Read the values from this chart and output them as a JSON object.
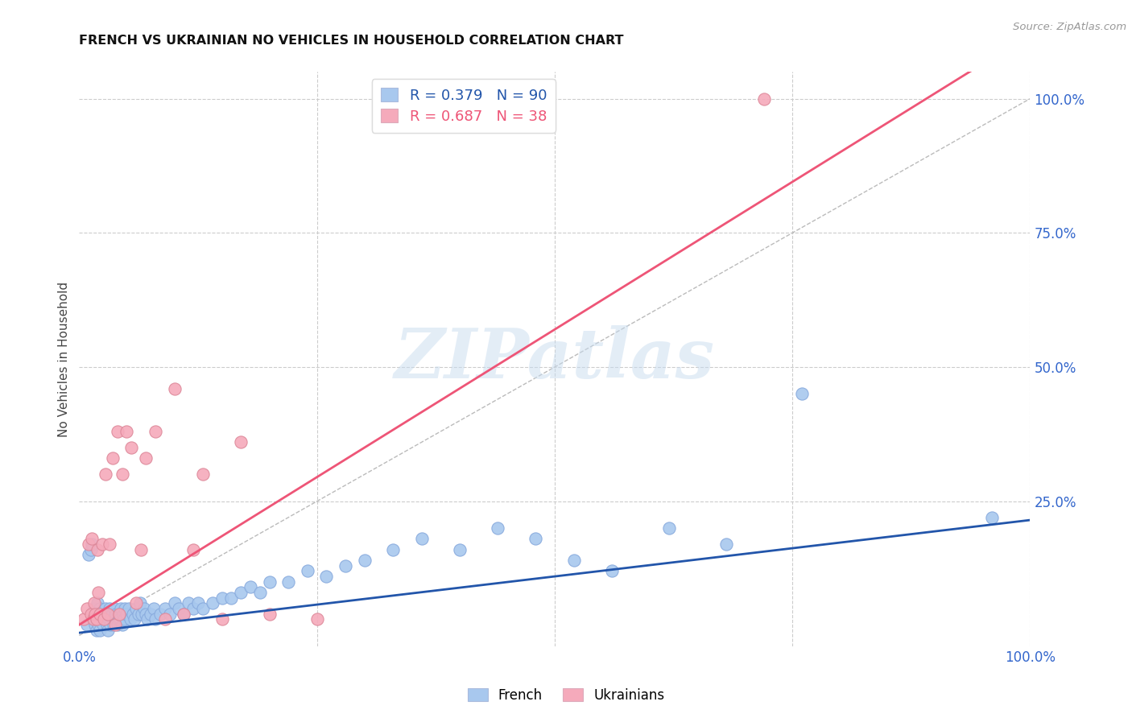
{
  "title": "FRENCH VS UKRAINIAN NO VEHICLES IN HOUSEHOLD CORRELATION CHART",
  "source": "Source: ZipAtlas.com",
  "ylabel": "No Vehicles in Household",
  "xlim": [
    0,
    1.0
  ],
  "ylim": [
    -0.02,
    1.05
  ],
  "xtick_labels": [
    "0.0%",
    "100.0%"
  ],
  "xtick_positions": [
    0.0,
    1.0
  ],
  "ytick_labels": [
    "100.0%",
    "75.0%",
    "50.0%",
    "25.0%"
  ],
  "ytick_positions": [
    1.0,
    0.75,
    0.5,
    0.25
  ],
  "french_R": 0.379,
  "french_N": 90,
  "ukrainian_R": 0.687,
  "ukrainian_N": 38,
  "french_color": "#A8C8EE",
  "ukrainian_color": "#F5AABB",
  "french_line_color": "#2255AA",
  "ukrainian_line_color": "#EE5577",
  "background_color": "#FFFFFF",
  "watermark_text": "ZIPatlas",
  "french_x": [
    0.008,
    0.01,
    0.012,
    0.013,
    0.015,
    0.016,
    0.017,
    0.018,
    0.018,
    0.019,
    0.02,
    0.02,
    0.021,
    0.022,
    0.022,
    0.023,
    0.024,
    0.025,
    0.026,
    0.027,
    0.028,
    0.029,
    0.03,
    0.03,
    0.031,
    0.032,
    0.033,
    0.034,
    0.035,
    0.036,
    0.037,
    0.038,
    0.039,
    0.04,
    0.041,
    0.042,
    0.043,
    0.044,
    0.045,
    0.046,
    0.047,
    0.048,
    0.05,
    0.052,
    0.054,
    0.056,
    0.058,
    0.06,
    0.062,
    0.064,
    0.066,
    0.068,
    0.07,
    0.072,
    0.075,
    0.078,
    0.08,
    0.085,
    0.09,
    0.095,
    0.1,
    0.105,
    0.11,
    0.115,
    0.12,
    0.125,
    0.13,
    0.14,
    0.15,
    0.16,
    0.17,
    0.18,
    0.19,
    0.2,
    0.22,
    0.24,
    0.26,
    0.28,
    0.3,
    0.33,
    0.36,
    0.4,
    0.44,
    0.48,
    0.52,
    0.56,
    0.62,
    0.68,
    0.76,
    0.96
  ],
  "french_y": [
    0.02,
    0.15,
    0.16,
    0.17,
    0.04,
    0.05,
    0.02,
    0.01,
    0.03,
    0.06,
    0.02,
    0.04,
    0.03,
    0.05,
    0.01,
    0.04,
    0.03,
    0.02,
    0.04,
    0.03,
    0.05,
    0.02,
    0.04,
    0.01,
    0.03,
    0.05,
    0.02,
    0.04,
    0.03,
    0.02,
    0.05,
    0.03,
    0.04,
    0.02,
    0.03,
    0.04,
    0.03,
    0.05,
    0.02,
    0.04,
    0.03,
    0.05,
    0.04,
    0.05,
    0.03,
    0.04,
    0.03,
    0.05,
    0.04,
    0.06,
    0.04,
    0.05,
    0.04,
    0.03,
    0.04,
    0.05,
    0.03,
    0.04,
    0.05,
    0.04,
    0.06,
    0.05,
    0.04,
    0.06,
    0.05,
    0.06,
    0.05,
    0.06,
    0.07,
    0.07,
    0.08,
    0.09,
    0.08,
    0.1,
    0.1,
    0.12,
    0.11,
    0.13,
    0.14,
    0.16,
    0.18,
    0.16,
    0.2,
    0.18,
    0.14,
    0.12,
    0.2,
    0.17,
    0.45,
    0.22
  ],
  "ukrainian_x": [
    0.005,
    0.008,
    0.01,
    0.012,
    0.013,
    0.015,
    0.016,
    0.017,
    0.018,
    0.019,
    0.02,
    0.022,
    0.024,
    0.026,
    0.028,
    0.03,
    0.032,
    0.035,
    0.038,
    0.04,
    0.042,
    0.045,
    0.05,
    0.055,
    0.06,
    0.065,
    0.07,
    0.08,
    0.09,
    0.1,
    0.11,
    0.12,
    0.13,
    0.15,
    0.17,
    0.2,
    0.25,
    0.72
  ],
  "ukrainian_y": [
    0.03,
    0.05,
    0.17,
    0.04,
    0.18,
    0.03,
    0.06,
    0.04,
    0.03,
    0.16,
    0.08,
    0.04,
    0.17,
    0.03,
    0.3,
    0.04,
    0.17,
    0.33,
    0.02,
    0.38,
    0.04,
    0.3,
    0.38,
    0.35,
    0.06,
    0.16,
    0.33,
    0.38,
    0.03,
    0.46,
    0.04,
    0.16,
    0.3,
    0.03,
    0.36,
    0.04,
    0.03,
    1.0
  ],
  "french_line_slope": 0.21,
  "french_line_intercept": 0.005,
  "ukrainian_line_slope": 1.1,
  "ukrainian_line_intercept": 0.02
}
